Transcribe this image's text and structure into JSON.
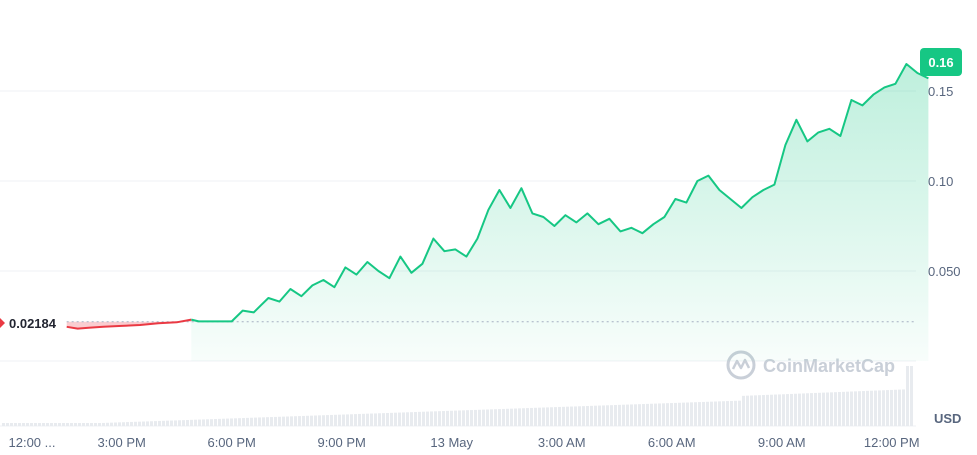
{
  "chart_data": {
    "type": "area",
    "y_ticks": [
      {
        "value": 0.15,
        "label": "0.15"
      },
      {
        "value": 0.1,
        "label": "0.10"
      },
      {
        "value": 0.05,
        "label": "0.050"
      }
    ],
    "x_ticks": [
      "12:00 ...",
      "3:00 PM",
      "6:00 PM",
      "9:00 PM",
      "13 May",
      "3:00 AM",
      "6:00 AM",
      "9:00 AM",
      "12:00 PM"
    ],
    "x_tick_hours": [
      12,
      15,
      18,
      21,
      24,
      27,
      30,
      33,
      36
    ],
    "ylim": [
      0,
      0.2
    ],
    "baseline": {
      "value": 0.02184,
      "label": "0.02184"
    },
    "current": {
      "value": 0.157,
      "label": "0.16"
    },
    "unit_label": "USD",
    "watermark": "CoinMarketCap",
    "colors": {
      "up": "#16c784",
      "down": "#ea3943",
      "axis_text": "#58667e"
    },
    "series": [
      {
        "x": [
          13.5,
          13.8,
          14.1,
          14.5,
          15.0,
          15.5,
          16.0,
          16.5,
          16.9,
          17.1,
          17.4,
          17.7,
          18.0,
          18.3,
          18.6,
          18.8,
          19.0,
          19.3,
          19.6,
          19.9,
          20.2,
          20.5,
          20.8,
          21.1,
          21.4,
          21.7,
          22.0,
          22.3,
          22.6,
          22.9,
          23.2,
          23.5,
          23.8,
          24.1,
          24.4,
          24.7,
          25.0,
          25.3,
          25.6,
          25.9,
          26.2,
          26.5,
          26.8,
          27.1,
          27.4,
          27.7,
          28.0,
          28.3,
          28.6,
          28.9,
          29.2,
          29.5,
          29.8,
          30.1,
          30.4,
          30.7,
          31.0,
          31.3,
          31.6,
          31.9,
          32.2,
          32.5,
          32.8,
          33.1,
          33.4,
          33.7,
          34.0,
          34.3,
          34.6,
          34.9,
          35.2,
          35.5,
          35.8,
          36.1,
          36.4,
          36.7,
          37.0
        ],
        "y": [
          0.019,
          0.018,
          0.0185,
          0.019,
          0.0195,
          0.02,
          0.021,
          0.0215,
          0.023,
          0.022,
          0.022,
          0.022,
          0.022,
          0.028,
          0.027,
          0.031,
          0.035,
          0.033,
          0.04,
          0.036,
          0.042,
          0.045,
          0.041,
          0.052,
          0.048,
          0.055,
          0.05,
          0.046,
          0.058,
          0.049,
          0.054,
          0.068,
          0.061,
          0.062,
          0.058,
          0.068,
          0.084,
          0.095,
          0.085,
          0.096,
          0.082,
          0.08,
          0.075,
          0.081,
          0.077,
          0.082,
          0.076,
          0.079,
          0.072,
          0.074,
          0.071,
          0.076,
          0.08,
          0.09,
          0.088,
          0.1,
          0.103,
          0.095,
          0.09,
          0.085,
          0.091,
          0.095,
          0.098,
          0.12,
          0.134,
          0.122,
          0.127,
          0.129,
          0.125,
          0.145,
          0.142,
          0.148,
          0.152,
          0.154,
          0.165,
          0.16,
          0.157
        ]
      }
    ]
  }
}
